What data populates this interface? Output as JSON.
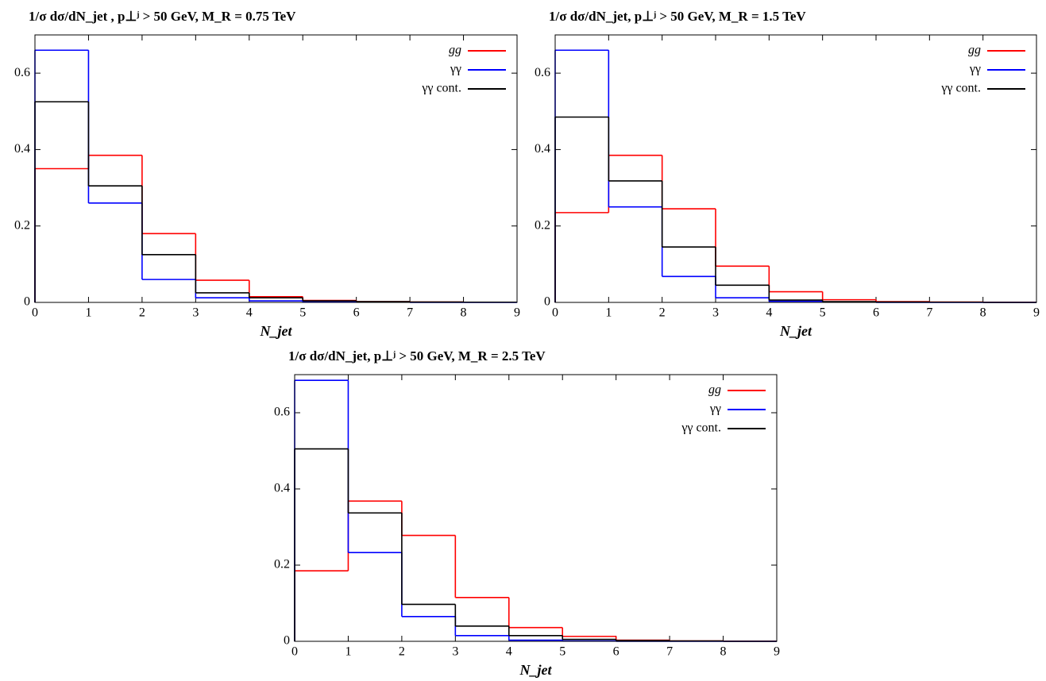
{
  "chart_data": [
    {
      "type": "histogram",
      "title": "1/σ dσ/dN_jet , p⊥ʲ > 50 GeV, M_R = 0.75 TeV",
      "xlabel": "N_jet",
      "bins": [
        0,
        1,
        2,
        3,
        4,
        5,
        6,
        7,
        8,
        9
      ],
      "xlim": [
        0,
        9
      ],
      "xticks": [
        0,
        1,
        2,
        3,
        4,
        5,
        6,
        7,
        8,
        9
      ],
      "ylim": [
        0,
        0.7
      ],
      "yticks": [
        0,
        0.2,
        0.4,
        0.6
      ],
      "legend": "upper right",
      "series": [
        {
          "name": "gg",
          "color": "#ff0000",
          "values": [
            0.35,
            0.385,
            0.18,
            0.058,
            0.015,
            0.005,
            0.002,
            0.001,
            0.0005
          ]
        },
        {
          "name": "γγ",
          "color": "#0000ff",
          "values": [
            0.66,
            0.26,
            0.06,
            0.012,
            0.004,
            0.001,
            0.0005,
            0,
            0
          ]
        },
        {
          "name": "γγ cont.",
          "color": "#000000",
          "values": [
            0.525,
            0.305,
            0.125,
            0.025,
            0.012,
            0.004,
            0.002,
            0.001,
            0.0005
          ]
        }
      ]
    },
    {
      "type": "histogram",
      "title": "1/σ dσ/dN_jet, p⊥ʲ > 50 GeV, M_R = 1.5 TeV",
      "xlabel": "N_jet",
      "bins": [
        0,
        1,
        2,
        3,
        4,
        5,
        6,
        7,
        8,
        9
      ],
      "xlim": [
        0,
        9
      ],
      "xticks": [
        0,
        1,
        2,
        3,
        4,
        5,
        6,
        7,
        8,
        9
      ],
      "ylim": [
        0,
        0.7
      ],
      "yticks": [
        0,
        0.2,
        0.4,
        0.6
      ],
      "legend": "upper right",
      "series": [
        {
          "name": "gg",
          "color": "#ff0000",
          "values": [
            0.235,
            0.385,
            0.245,
            0.095,
            0.028,
            0.007,
            0.002,
            0.001,
            0.0005
          ]
        },
        {
          "name": "γγ",
          "color": "#0000ff",
          "values": [
            0.66,
            0.25,
            0.068,
            0.012,
            0.003,
            0.001,
            0,
            0,
            0
          ]
        },
        {
          "name": "γγ cont.",
          "color": "#000000",
          "values": [
            0.485,
            0.318,
            0.145,
            0.045,
            0.006,
            0.002,
            0.001,
            0.0005,
            0
          ]
        }
      ]
    },
    {
      "type": "histogram",
      "title": "1/σ dσ/dN_jet, p⊥ʲ > 50 GeV, M_R = 2.5 TeV",
      "xlabel": "N_jet",
      "bins": [
        0,
        1,
        2,
        3,
        4,
        5,
        6,
        7,
        8,
        9
      ],
      "xlim": [
        0,
        9
      ],
      "xticks": [
        0,
        1,
        2,
        3,
        4,
        5,
        6,
        7,
        8,
        9
      ],
      "ylim": [
        0,
        0.7
      ],
      "yticks": [
        0,
        0.2,
        0.4,
        0.6
      ],
      "legend": "upper right",
      "series": [
        {
          "name": "gg",
          "color": "#ff0000",
          "values": [
            0.185,
            0.368,
            0.278,
            0.115,
            0.036,
            0.013,
            0.003,
            0.001,
            0.0005
          ]
        },
        {
          "name": "γγ",
          "color": "#0000ff",
          "values": [
            0.685,
            0.233,
            0.065,
            0.015,
            0.003,
            0.001,
            0,
            0,
            0
          ]
        },
        {
          "name": "γγ cont.",
          "color": "#000000",
          "values": [
            0.505,
            0.337,
            0.097,
            0.04,
            0.015,
            0.005,
            0.002,
            0.001,
            0
          ]
        }
      ]
    }
  ]
}
